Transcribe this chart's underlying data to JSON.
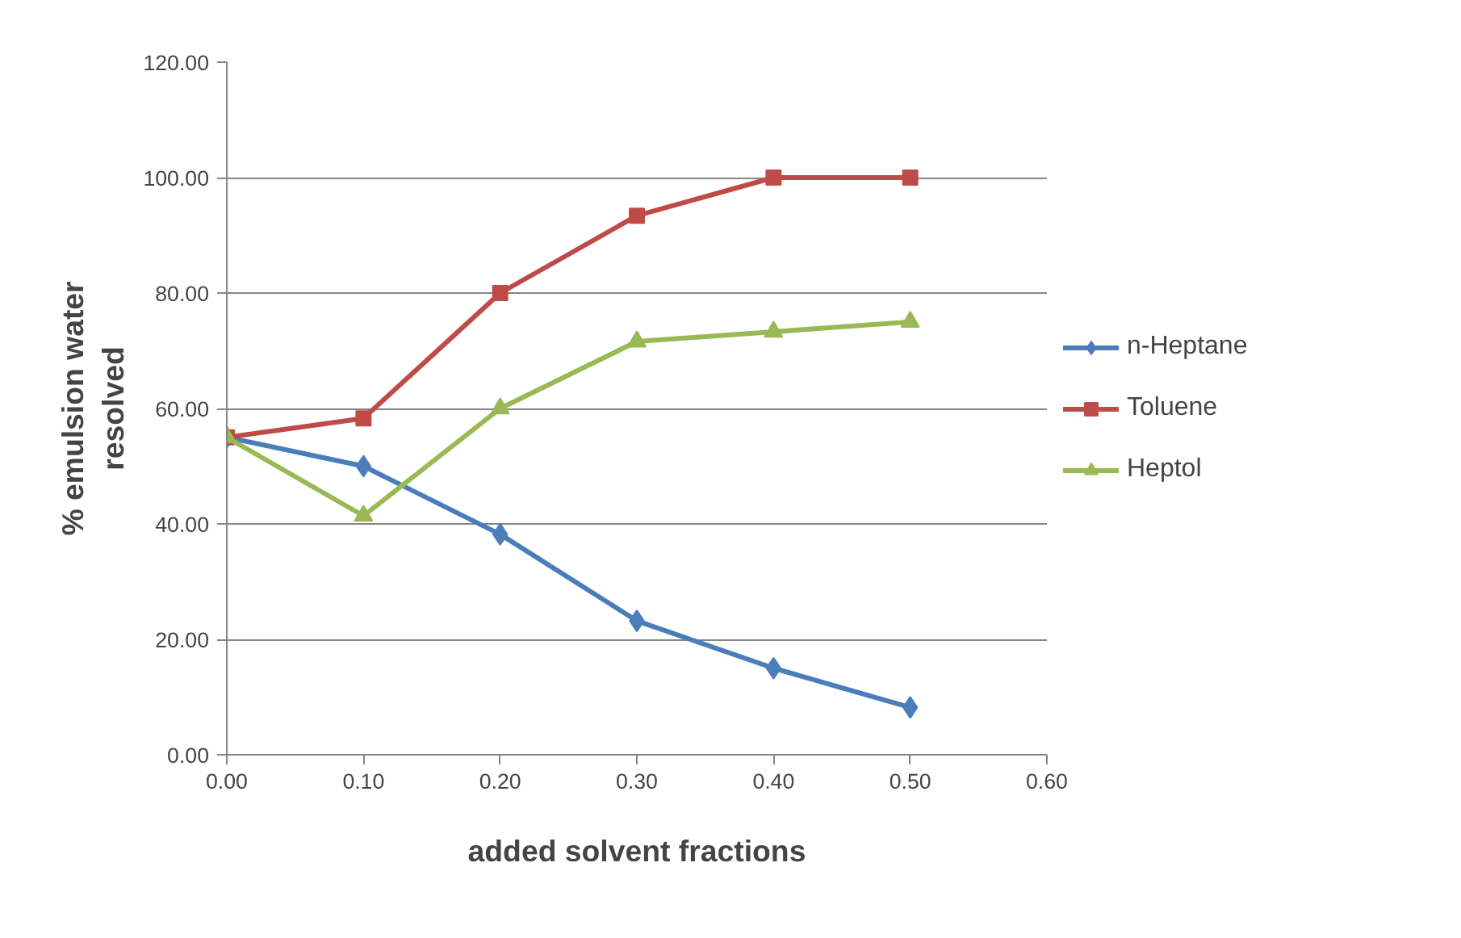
{
  "chart_data": {
    "type": "line",
    "xlabel": "added solvent fractions",
    "ylabel": "% emulsion water\nresolved",
    "x": [
      0,
      0.1,
      0.2,
      0.3,
      0.4,
      0.5
    ],
    "series": [
      {
        "name": "n-Heptane",
        "color": "#4a7ebb",
        "marker": "diamond",
        "values": [
          55,
          50,
          38.2,
          23.2,
          15,
          8.2
        ]
      },
      {
        "name": "Toluene",
        "color": "#be4b48",
        "marker": "square",
        "values": [
          55,
          58.3,
          80,
          93.4,
          100,
          100
        ]
      },
      {
        "name": "Heptol",
        "color": "#98b954",
        "marker": "triangle",
        "values": [
          55,
          41.4,
          60,
          71.6,
          73.3,
          75
        ]
      }
    ],
    "xlim": [
      0,
      0.6
    ],
    "xticks": [
      {
        "value": 0,
        "label": "0.00"
      },
      {
        "value": 0.1,
        "label": "0.10"
      },
      {
        "value": 0.2,
        "label": "0.20"
      },
      {
        "value": 0.3,
        "label": "0.30"
      },
      {
        "value": 0.4,
        "label": "0.40"
      },
      {
        "value": 0.5,
        "label": "0.50"
      },
      {
        "value": 0.6,
        "label": "0.60"
      }
    ],
    "ylim": [
      0,
      120
    ],
    "yticks": [
      {
        "value": 0,
        "label": "0.00"
      },
      {
        "value": 20,
        "label": "20.00"
      },
      {
        "value": 40,
        "label": "40.00"
      },
      {
        "value": 60,
        "label": "60.00"
      },
      {
        "value": 80,
        "label": "80.00"
      },
      {
        "value": 100,
        "label": "100.00"
      },
      {
        "value": 120,
        "label": "120.00"
      }
    ],
    "grid": "y",
    "legend": "right",
    "line_style": "solid"
  }
}
